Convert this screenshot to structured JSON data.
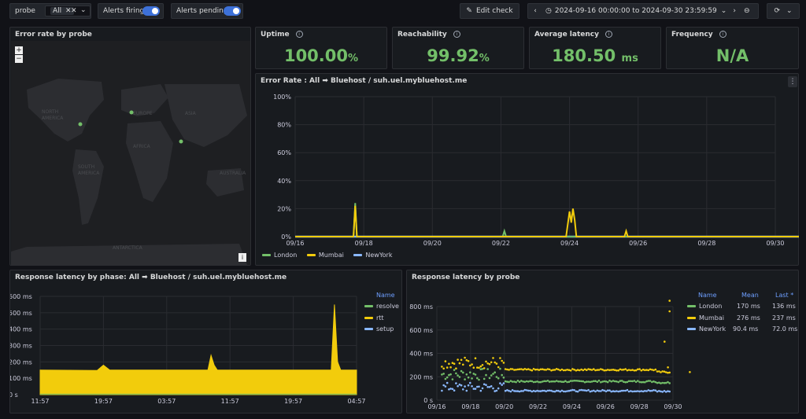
{
  "toolbar": {
    "probe_label": "probe",
    "probe_value": "All",
    "alerts_firing_label": "Alerts firing",
    "alerts_pending_label": "Alerts pending",
    "edit_check_label": "Edit check",
    "time_range": "2024-09-16 00:00:00 to 2024-09-30 23:59:59"
  },
  "map": {
    "title": "Error rate by probe",
    "zoom_in": "+",
    "zoom_out": "−",
    "info": "i",
    "labels": [
      "NORTH AMERICA",
      "EUROPE",
      "ASIA",
      "AFRICA",
      "SOUTH AMERICA",
      "AUSTRALIA",
      "ANTARCTICA"
    ]
  },
  "stats": [
    {
      "title": "Uptime",
      "value": "100.00",
      "unit": "%"
    },
    {
      "title": "Reachability",
      "value": "99.92",
      "unit": "%"
    },
    {
      "title": "Average latency",
      "value": "180.50",
      "unit": "ms"
    },
    {
      "title": "Frequency",
      "value": "N/A",
      "unit": ""
    }
  ],
  "colors": {
    "london": "#73bf69",
    "mumbai": "#f2cc0c",
    "newyork": "#8ab8ff",
    "stat_green": "#73bf69"
  },
  "chart_data": [
    {
      "type": "line",
      "title": "Error Rate : All ➡ Bluehost / suh.uel.mybluehost.me",
      "xlabel": "",
      "ylabel": "",
      "x_ticks": [
        "09/16",
        "09/18",
        "09/20",
        "09/22",
        "09/24",
        "09/26",
        "09/28",
        "09/30"
      ],
      "y_ticks": [
        "0%",
        "20%",
        "40%",
        "60%",
        "80%",
        "100%"
      ],
      "ylim": [
        0,
        100
      ],
      "legend": "bottom",
      "series": [
        {
          "name": "London",
          "values": [
            [
              0,
              0
            ],
            [
              1.7,
              0
            ],
            [
              1.75,
              24
            ],
            [
              1.8,
              0
            ],
            [
              6.05,
              0
            ],
            [
              6.1,
              4
            ],
            [
              6.15,
              0
            ],
            [
              15,
              0
            ]
          ]
        },
        {
          "name": "Mumbai",
          "values": [
            [
              0,
              0
            ],
            [
              1.7,
              0
            ],
            [
              1.75,
              22
            ],
            [
              1.8,
              0
            ],
            [
              7.9,
              0
            ],
            [
              8.0,
              18
            ],
            [
              8.05,
              10
            ],
            [
              8.1,
              20
            ],
            [
              8.15,
              12
            ],
            [
              8.2,
              0
            ],
            [
              9.6,
              0
            ],
            [
              9.65,
              4
            ],
            [
              9.7,
              0
            ],
            [
              15,
              0
            ]
          ]
        },
        {
          "name": "NewYork",
          "values": [
            [
              0,
              0
            ],
            [
              15,
              0
            ]
          ]
        }
      ]
    },
    {
      "type": "area",
      "title": "Response latency by phase: All ➡ Bluehost / suh.uel.mybluehost.me",
      "xlabel": "",
      "ylabel": "",
      "x_ticks": [
        "11:57",
        "19:57",
        "03:57",
        "11:57",
        "19:57",
        "04:57"
      ],
      "y_ticks": [
        "0 s",
        "100 ms",
        "200 ms",
        "300 ms",
        "400 ms",
        "500 ms",
        "600 ms"
      ],
      "ylim": [
        0,
        600
      ],
      "legend_title": "Name",
      "series": [
        {
          "name": "resolve",
          "values": [
            3,
            3
          ]
        },
        {
          "name": "rtt",
          "values": [
            [
              0,
              150
            ],
            [
              0.18,
              148
            ],
            [
              0.2,
              180
            ],
            [
              0.22,
              150
            ],
            [
              0.53,
              150
            ],
            [
              0.54,
              240
            ],
            [
              0.55,
              180
            ],
            [
              0.56,
              150
            ],
            [
              0.92,
              150
            ],
            [
              0.93,
              550
            ],
            [
              0.94,
              200
            ],
            [
              0.95,
              150
            ],
            [
              1,
              150
            ]
          ]
        },
        {
          "name": "setup",
          "values": [
            0,
            0
          ]
        }
      ]
    },
    {
      "type": "scatter",
      "title": "Response latency by probe",
      "xlabel": "",
      "ylabel": "",
      "x_ticks": [
        "09/16",
        "09/18",
        "09/20",
        "09/22",
        "09/24",
        "09/26",
        "09/28",
        "09/30"
      ],
      "y_ticks": [
        "0 s",
        "200 ms",
        "400 ms",
        "600 ms",
        "800 ms"
      ],
      "ylim": [
        0,
        900
      ],
      "legend_headers": [
        "Name",
        "Mean",
        "Last *"
      ],
      "series": [
        {
          "name": "London",
          "mean": "170 ms",
          "last": "136 ms",
          "values": [
            [
              0,
              220
            ],
            [
              4,
              160
            ],
            [
              15,
              150
            ]
          ]
        },
        {
          "name": "Mumbai",
          "mean": "276 ms",
          "last": "237 ms",
          "values": [
            [
              0,
              320
            ],
            [
              4,
              260
            ],
            [
              8.2,
              470
            ],
            [
              13.8,
              850
            ],
            [
              15,
              240
            ]
          ]
        },
        {
          "name": "NewYork",
          "mean": "90.4 ms",
          "last": "72.0 ms",
          "values": [
            [
              0,
              110
            ],
            [
              4,
              80
            ],
            [
              15,
              75
            ]
          ]
        }
      ]
    }
  ]
}
